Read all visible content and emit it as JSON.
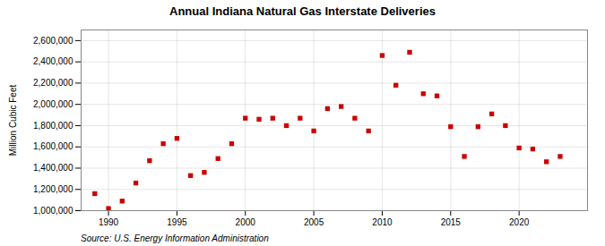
{
  "chart_data": {
    "type": "scatter",
    "title": "Annual Indiana Natural Gas Interstate Deliveries",
    "ylabel": "Million Cubic Feet",
    "source": "Source: U.S. Energy Information Administration",
    "x": [
      1989,
      1990,
      1991,
      1992,
      1993,
      1994,
      1995,
      1996,
      1997,
      1998,
      1999,
      2000,
      2001,
      2002,
      2003,
      2004,
      2005,
      2006,
      2007,
      2008,
      2009,
      2010,
      2011,
      2012,
      2013,
      2014,
      2015,
      2016,
      2017,
      2018,
      2019,
      2020,
      2021,
      2022,
      2023
    ],
    "values": [
      1160000,
      1020000,
      1090000,
      1260000,
      1470000,
      1630000,
      1680000,
      1330000,
      1360000,
      1490000,
      1630000,
      1870000,
      1860000,
      1870000,
      1800000,
      1870000,
      1750000,
      1960000,
      1980000,
      1870000,
      1750000,
      2460000,
      2180000,
      2490000,
      2100000,
      2080000,
      1790000,
      1510000,
      1790000,
      1910000,
      1800000,
      1590000,
      1580000,
      1460000,
      1510000
    ],
    "color": "#cc0000",
    "marker": "square",
    "xlim": [
      1988,
      2025
    ],
    "xticks": [
      1990,
      1995,
      2000,
      2005,
      2010,
      2015,
      2020
    ],
    "ylim": [
      1000000,
      2700000
    ],
    "yticks": [
      {
        "value": 1000000,
        "label": "1,000,000"
      },
      {
        "value": 1200000,
        "label": "1,200,000"
      },
      {
        "value": 1400000,
        "label": "1,400,000"
      },
      {
        "value": 1600000,
        "label": "1,600,000"
      },
      {
        "value": 1800000,
        "label": "1,800,000"
      },
      {
        "value": 2000000,
        "label": "2,000,000"
      },
      {
        "value": 2200000,
        "label": "2,200,000"
      },
      {
        "value": 2400000,
        "label": "2,400,000"
      },
      {
        "value": 2600000,
        "label": "2,600,000"
      }
    ],
    "grid": true
  }
}
